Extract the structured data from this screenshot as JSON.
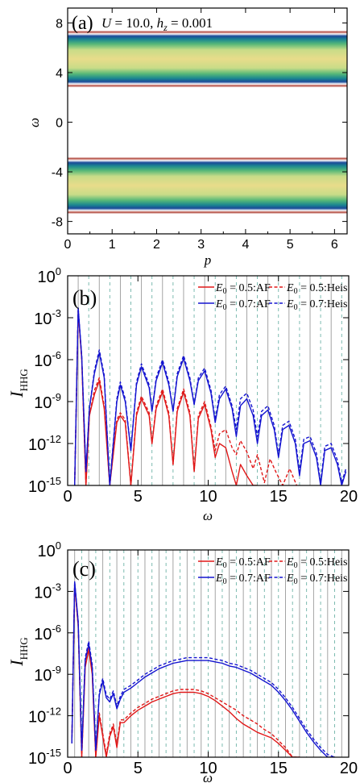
{
  "chart_data": [
    {
      "panel_label": "(a)",
      "type": "heatmap",
      "annotation": "U = 10.0, h_z = 0.001",
      "annotation_parts": {
        "U_label": "U",
        "U_value": "10.0",
        "h_label": "h",
        "h_sub": "z",
        "h_value": "0.001"
      },
      "xlabel": "p",
      "ylabel": "ω",
      "xlim": [
        0,
        6.283
      ],
      "ylim": [
        -9,
        9.2
      ],
      "xticks": [
        "0",
        "1",
        "2",
        "3",
        "4",
        "5",
        "6"
      ],
      "yticks": [
        "-8",
        "-4",
        "0",
        "4",
        "8"
      ],
      "bands": [
        {
          "name": "upper",
          "omega_min": 2.8,
          "omega_max": 7.4
        },
        {
          "name": "lower",
          "omega_min": -7.4,
          "omega_max": -2.8
        }
      ],
      "colors": {
        "center": "#e8dc8a",
        "inner": "#c8dc88",
        "green": "#58b878",
        "teal": "#1c8890",
        "blue": "#184a98",
        "edge_red": "#b24a40"
      }
    },
    {
      "panel_label": "(b)",
      "type": "line",
      "xlabel": "ω",
      "ylabel": "I_HHG",
      "xlim": [
        0,
        20
      ],
      "ylim_log10": [
        -15,
        0
      ],
      "xticks": [
        "0",
        "5",
        "10",
        "15",
        "20"
      ],
      "yticks": [
        {
          "base": "10",
          "exp": "0"
        },
        {
          "base": "10",
          "exp": "-3"
        },
        {
          "base": "10",
          "exp": "-6"
        },
        {
          "base": "10",
          "exp": "-9"
        },
        {
          "base": "10",
          "exp": "-12"
        },
        {
          "base": "10",
          "exp": "-15"
        }
      ],
      "omega0": 0.75,
      "legend": [
        {
          "text": "E0 = 0.5:AF",
          "sym": "E",
          "sub": "0",
          "rest": " = 0.5:AF",
          "color": "#e01818",
          "dash": false
        },
        {
          "text": "E0 = 0.5:Heis",
          "sym": "E",
          "sub": "0",
          "rest": " = 0.5:Heis",
          "color": "#e01818",
          "dash": true
        },
        {
          "text": "E0 = 0.7:AF",
          "sym": "E",
          "sub": "0",
          "rest": " = 0.7:AF",
          "color": "#1414d0",
          "dash": false
        },
        {
          "text": "E0 = 0.7:Heis",
          "sym": "E",
          "sub": "0",
          "rest": " = 0.7:Heis",
          "color": "#1414d0",
          "dash": true
        }
      ],
      "series": [
        {
          "legend_index": 0,
          "x": [
            0.5,
            0.75,
            1.0,
            1.3,
            1.55,
            1.9,
            2.25,
            2.6,
            3.0,
            3.5,
            3.75,
            4.1,
            4.5,
            4.9,
            5.25,
            5.8,
            6.0,
            6.3,
            6.75,
            7.2,
            7.5,
            7.8,
            8.25,
            8.7,
            9.0,
            9.3,
            9.75,
            10.2,
            10.5,
            10.8,
            11.25,
            11.7,
            12.0,
            12.3,
            12.75,
            13.2,
            13.5
          ],
          "y": [
            -15.0,
            -2.5,
            -6.0,
            -15.0,
            -10.0,
            -8.5,
            -7.5,
            -9.5,
            -15.0,
            -10.5,
            -10.0,
            -10.5,
            -15.0,
            -10.0,
            -8.8,
            -10.0,
            -12.0,
            -9.5,
            -8.3,
            -10.0,
            -13.5,
            -9.7,
            -8.3,
            -10.0,
            -14.0,
            -10.2,
            -9.2,
            -11.0,
            -13.0,
            -12.0,
            -12.3,
            -14.0,
            -15.0,
            -13.5,
            -14.3,
            -15.0,
            -15.0
          ]
        },
        {
          "legend_index": 1,
          "x": [
            0.5,
            0.75,
            1.0,
            1.3,
            1.55,
            1.9,
            2.25,
            2.6,
            3.0,
            3.5,
            3.75,
            4.1,
            4.5,
            4.9,
            5.25,
            5.8,
            6.0,
            6.3,
            6.75,
            7.2,
            7.5,
            7.8,
            8.25,
            8.7,
            9.0,
            9.3,
            9.75,
            10.2,
            10.5,
            10.8,
            11.25,
            11.7,
            12.0,
            12.3,
            12.75,
            13.2,
            13.5,
            14.0,
            14.4,
            14.8,
            15.3,
            15.8,
            16.3
          ],
          "y": [
            -15.0,
            -2.5,
            -6.0,
            -15.0,
            -10.0,
            -8.2,
            -7.3,
            -9.3,
            -15.0,
            -10.3,
            -9.8,
            -10.3,
            -15.0,
            -9.8,
            -8.6,
            -9.8,
            -12.0,
            -9.3,
            -8.1,
            -9.8,
            -13.5,
            -9.5,
            -8.1,
            -9.8,
            -14.0,
            -10.0,
            -9.0,
            -10.8,
            -12.5,
            -11.3,
            -11.0,
            -12.3,
            -12.8,
            -11.8,
            -12.6,
            -13.8,
            -12.8,
            -14.8,
            -13.1,
            -14.0,
            -15.0,
            -13.8,
            -15.0
          ]
        },
        {
          "legend_index": 2,
          "x": [
            0.5,
            0.75,
            1.0,
            1.3,
            1.55,
            1.9,
            2.25,
            2.6,
            3.0,
            3.5,
            3.75,
            4.1,
            4.5,
            4.9,
            5.25,
            5.8,
            6.0,
            6.3,
            6.75,
            7.2,
            7.5,
            7.8,
            8.25,
            8.7,
            9.0,
            9.3,
            9.75,
            10.2,
            10.5,
            10.8,
            11.25,
            11.7,
            12.0,
            12.3,
            12.75,
            13.2,
            13.5,
            13.8,
            14.25,
            14.7,
            15.0,
            15.3,
            15.75,
            16.2,
            16.5,
            16.8,
            17.25,
            17.7,
            18.0,
            18.3,
            18.75,
            19.2,
            19.5,
            19.8
          ],
          "y": [
            -15.0,
            -2.3,
            -5.8,
            -14.0,
            -9.5,
            -7.0,
            -5.5,
            -7.3,
            -15.0,
            -9.0,
            -7.8,
            -9.0,
            -12.5,
            -7.8,
            -6.5,
            -8.0,
            -9.7,
            -7.5,
            -6.2,
            -7.8,
            -9.7,
            -7.2,
            -5.9,
            -7.5,
            -9.2,
            -7.5,
            -6.8,
            -8.4,
            -10.5,
            -8.8,
            -8.1,
            -9.5,
            -11.5,
            -9.3,
            -8.8,
            -10.0,
            -12.0,
            -10.0,
            -9.6,
            -11.0,
            -13.0,
            -11.0,
            -10.7,
            -12.0,
            -14.3,
            -12.0,
            -11.8,
            -13.0,
            -15.0,
            -12.5,
            -12.3,
            -13.5,
            -15.0,
            -14.0
          ]
        },
        {
          "legend_index": 3,
          "x": [
            0.5,
            0.75,
            1.0,
            1.3,
            1.55,
            1.9,
            2.25,
            2.6,
            3.0,
            3.5,
            3.75,
            4.1,
            4.5,
            4.9,
            5.25,
            5.8,
            6.0,
            6.3,
            6.75,
            7.2,
            7.5,
            7.8,
            8.25,
            8.7,
            9.0,
            9.3,
            9.75,
            10.2,
            10.5,
            10.8,
            11.25,
            11.7,
            12.0,
            12.3,
            12.75,
            13.2,
            13.5,
            13.8,
            14.25,
            14.7,
            15.0,
            15.3,
            15.75,
            16.2,
            16.5,
            16.8,
            17.25,
            17.7,
            18.0,
            18.3,
            18.75,
            19.2,
            19.5,
            19.8
          ],
          "y": [
            -15.0,
            -2.3,
            -5.8,
            -14.0,
            -9.5,
            -6.8,
            -5.3,
            -7.1,
            -15.0,
            -8.8,
            -7.6,
            -8.8,
            -12.5,
            -7.6,
            -6.3,
            -7.8,
            -9.7,
            -7.3,
            -6.0,
            -7.6,
            -9.7,
            -7.0,
            -5.7,
            -7.3,
            -9.2,
            -7.3,
            -6.6,
            -8.2,
            -10.3,
            -8.5,
            -7.9,
            -9.3,
            -11.0,
            -8.8,
            -8.4,
            -9.6,
            -11.5,
            -9.7,
            -9.3,
            -10.7,
            -12.8,
            -10.7,
            -10.4,
            -11.7,
            -14.0,
            -11.7,
            -11.5,
            -12.7,
            -14.8,
            -12.2,
            -12.0,
            -13.2,
            -14.8,
            -13.8
          ]
        }
      ]
    },
    {
      "panel_label": "(c)",
      "type": "line",
      "xlabel": "ω",
      "ylabel": "I_HHG",
      "xlim": [
        0,
        20
      ],
      "ylim_log10": [
        -15,
        0
      ],
      "xticks": [
        "0",
        "5",
        "10",
        "15",
        "20"
      ],
      "yticks": [
        {
          "base": "10",
          "exp": "0"
        },
        {
          "base": "10",
          "exp": "-3"
        },
        {
          "base": "10",
          "exp": "-6"
        },
        {
          "base": "10",
          "exp": "-9"
        },
        {
          "base": "10",
          "exp": "-12"
        },
        {
          "base": "10",
          "exp": "-15"
        }
      ],
      "omega0": 0.5,
      "legend": [
        {
          "text": "E0 = 0.5:AF",
          "sym": "E",
          "sub": "0",
          "rest": " = 0.5:AF",
          "color": "#e01818",
          "dash": false
        },
        {
          "text": "E0 = 0.5:Heis",
          "sym": "E",
          "sub": "0",
          "rest": " = 0.5:Heis",
          "color": "#e01818",
          "dash": true
        },
        {
          "text": "E0 = 0.7:AF",
          "sym": "E",
          "sub": "0",
          "rest": " = 0.7:AF",
          "color": "#1414d0",
          "dash": false
        },
        {
          "text": "E0 = 0.7:Heis",
          "sym": "E",
          "sub": "0",
          "rest": " = 0.7:Heis",
          "color": "#1414d0",
          "dash": true
        }
      ],
      "series": [
        {
          "legend_index": 0,
          "x": [
            0.3,
            0.5,
            0.75,
            1.0,
            1.25,
            1.5,
            1.75,
            2.0,
            2.25,
            2.5,
            2.75,
            3.0,
            3.25,
            3.5,
            3.75,
            4.0,
            4.5,
            5.0,
            5.5,
            6.0,
            6.5,
            7.0,
            7.5,
            8.0,
            8.5,
            9.0,
            9.5,
            10.0,
            10.5,
            11.0,
            11.5,
            12.0,
            12.5,
            13.0,
            13.5,
            14.0,
            14.5,
            15.0,
            15.5,
            16.0,
            16.5
          ],
          "y": [
            -14.0,
            -2.5,
            -5.5,
            -15.0,
            -8.5,
            -7.2,
            -9.0,
            -15.0,
            -12.0,
            -13.5,
            -15.0,
            -13.5,
            -12.8,
            -14.3,
            -12.5,
            -12.5,
            -12.0,
            -11.6,
            -11.3,
            -11.0,
            -10.8,
            -10.6,
            -10.4,
            -10.3,
            -10.3,
            -10.3,
            -10.4,
            -10.6,
            -10.9,
            -11.3,
            -11.7,
            -12.2,
            -12.6,
            -12.9,
            -13.2,
            -13.4,
            -13.6,
            -14.0,
            -14.5,
            -15.0,
            -15.0
          ]
        },
        {
          "legend_index": 1,
          "x": [
            0.3,
            0.5,
            0.75,
            1.0,
            1.25,
            1.5,
            1.75,
            2.0,
            2.25,
            2.5,
            2.75,
            3.0,
            3.25,
            3.5,
            3.75,
            4.0,
            4.5,
            5.0,
            5.5,
            6.0,
            6.5,
            7.0,
            7.5,
            8.0,
            8.5,
            9.0,
            9.5,
            10.0,
            10.5,
            11.0,
            11.5,
            12.0,
            12.5,
            13.0,
            13.5,
            14.0,
            14.5,
            15.0,
            15.5,
            16.0,
            16.5
          ],
          "y": [
            -14.0,
            -2.5,
            -5.5,
            -15.0,
            -8.3,
            -7.0,
            -8.8,
            -15.0,
            -11.8,
            -13.3,
            -14.8,
            -13.3,
            -12.6,
            -14.1,
            -12.3,
            -12.3,
            -11.8,
            -11.4,
            -11.1,
            -10.8,
            -10.6,
            -10.4,
            -10.2,
            -10.1,
            -10.1,
            -10.1,
            -10.2,
            -10.4,
            -10.7,
            -11.0,
            -11.3,
            -11.6,
            -12.0,
            -12.3,
            -12.6,
            -13.0,
            -13.3,
            -13.8,
            -14.3,
            -15.0,
            -15.0
          ]
        },
        {
          "legend_index": 2,
          "x": [
            0.3,
            0.5,
            0.75,
            1.0,
            1.25,
            1.5,
            1.75,
            2.0,
            2.25,
            2.5,
            2.75,
            3.0,
            3.25,
            3.5,
            3.75,
            4.0,
            4.5,
            5.0,
            5.5,
            6.0,
            6.5,
            7.0,
            7.5,
            8.0,
            8.5,
            9.0,
            9.5,
            10.0,
            10.5,
            11.0,
            11.5,
            12.0,
            12.5,
            13.0,
            13.5,
            14.0,
            14.5,
            15.0,
            15.5,
            16.0,
            16.5,
            17.0,
            17.5,
            18.0,
            18.5,
            19.0
          ],
          "y": [
            -14.0,
            -2.3,
            -5.2,
            -14.5,
            -8.0,
            -6.8,
            -8.5,
            -14.5,
            -10.5,
            -9.5,
            -10.7,
            -11.0,
            -10.4,
            -11.5,
            -10.8,
            -10.3,
            -10.0,
            -9.6,
            -9.2,
            -8.9,
            -8.6,
            -8.4,
            -8.2,
            -8.1,
            -8.0,
            -8.0,
            -8.0,
            -8.0,
            -8.1,
            -8.2,
            -8.4,
            -8.5,
            -8.7,
            -8.9,
            -9.2,
            -9.5,
            -9.8,
            -10.3,
            -10.9,
            -11.6,
            -12.4,
            -13.2,
            -13.9,
            -14.5,
            -15.0,
            -15.0
          ]
        },
        {
          "legend_index": 3,
          "x": [
            0.3,
            0.5,
            0.75,
            1.0,
            1.25,
            1.5,
            1.75,
            2.0,
            2.25,
            2.5,
            2.75,
            3.0,
            3.25,
            3.5,
            3.75,
            4.0,
            4.5,
            5.0,
            5.5,
            6.0,
            6.5,
            7.0,
            7.5,
            8.0,
            8.5,
            9.0,
            9.5,
            10.0,
            10.5,
            11.0,
            11.5,
            12.0,
            12.5,
            13.0,
            13.5,
            14.0,
            14.5,
            15.0,
            15.5,
            16.0,
            16.5,
            17.0,
            17.5,
            18.0,
            18.5,
            19.0
          ],
          "y": [
            -14.0,
            -2.3,
            -5.2,
            -14.5,
            -7.8,
            -6.6,
            -8.3,
            -14.5,
            -10.3,
            -9.3,
            -10.5,
            -10.8,
            -10.2,
            -11.3,
            -10.6,
            -10.1,
            -9.8,
            -9.4,
            -9.0,
            -8.7,
            -8.4,
            -8.2,
            -8.0,
            -7.9,
            -7.8,
            -7.8,
            -7.8,
            -7.8,
            -7.9,
            -8.0,
            -8.2,
            -8.3,
            -8.5,
            -8.7,
            -9.0,
            -9.3,
            -9.6,
            -10.1,
            -10.7,
            -11.4,
            -12.2,
            -13.0,
            -13.7,
            -14.3,
            -14.8,
            -15.0
          ]
        }
      ]
    }
  ]
}
